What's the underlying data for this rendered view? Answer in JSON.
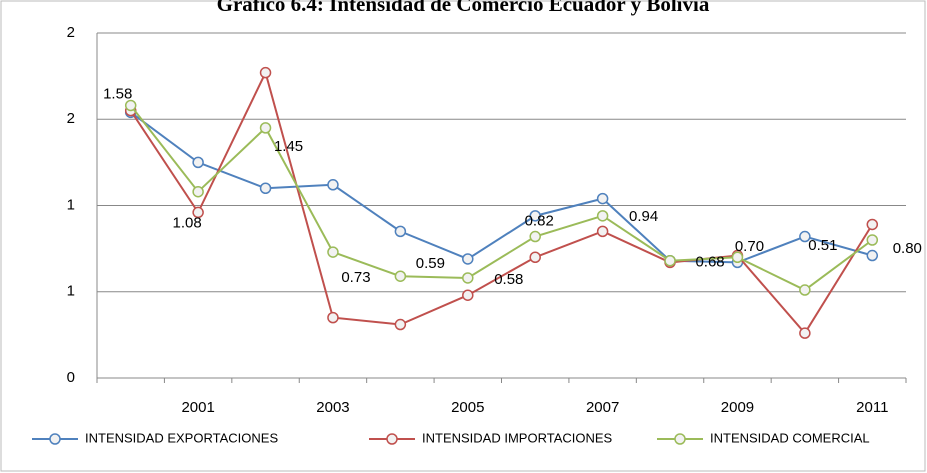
{
  "chart_data": {
    "type": "line",
    "title": "Gráfico 6.4: Intensidad de Comercio Ecuador y Bolivia",
    "categories": [
      null,
      "2001",
      null,
      "2003",
      null,
      "2005",
      null,
      "2007",
      null,
      "2009",
      null,
      "2011"
    ],
    "ylim": [
      0,
      2
    ],
    "yticks": [
      0,
      {
        "value": 0.5,
        "label": "1"
      },
      {
        "value": 1,
        "label": "1"
      },
      {
        "value": 1.5,
        "label": "2"
      },
      {
        "value": 2,
        "label": "2"
      }
    ],
    "grid": true,
    "legend": "bottom",
    "series": [
      {
        "name": "INTENSIDAD EXPORTACIONES",
        "color": "#4f81bd",
        "values": [
          1.54,
          1.25,
          1.1,
          1.12,
          0.85,
          0.69,
          0.94,
          1.04,
          0.68,
          0.67,
          0.82,
          0.71
        ]
      },
      {
        "name": "INTENSIDAD IMPORTACIONES",
        "color": "#c0504d",
        "values": [
          1.55,
          0.96,
          1.77,
          0.35,
          0.31,
          0.48,
          0.7,
          0.85,
          0.67,
          0.71,
          0.26,
          0.89
        ]
      },
      {
        "name": "INTENSIDAD COMERCIAL",
        "color": "#9bbb59",
        "values": [
          1.58,
          1.08,
          1.45,
          0.73,
          0.59,
          0.58,
          0.82,
          0.94,
          0.68,
          0.7,
          0.51,
          0.8
        ],
        "value_labels": [
          "1.58",
          "1.08",
          "1.45",
          "0.73",
          "0.59",
          "0.58",
          "0.82",
          "0.94",
          "0.68",
          "0.70",
          "0.51",
          "0.80"
        ]
      }
    ]
  }
}
